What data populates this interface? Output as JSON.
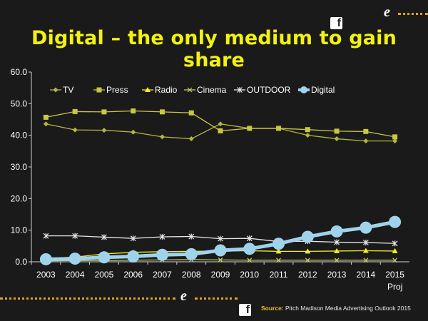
{
  "slide": {
    "title": "Digital – the only medium to gain share",
    "source_label": "Source:",
    "source_text": "Pitch Madison Media Advertising Outlook 2015"
  },
  "icons": {
    "facebook": "f"
  },
  "chart_data": {
    "type": "line",
    "title": "Digital – the only medium to gain share",
    "categories": [
      "2003",
      "2004",
      "2005",
      "2006",
      "2007",
      "2008",
      "2009",
      "2010",
      "2011",
      "2012",
      "2013",
      "2014",
      "2015"
    ],
    "x_sublabels": [
      "",
      "",
      "",
      "",
      "",
      "",
      "",
      "",
      "",
      "",
      "",
      "",
      "Proj"
    ],
    "ylim": [
      0,
      60
    ],
    "yticks": [
      "0.0",
      "10.0",
      "20.0",
      "30.0",
      "40.0",
      "50.0",
      "60.0"
    ],
    "ytick_values": [
      0,
      10,
      20,
      30,
      40,
      50,
      60
    ],
    "legend_position": "top",
    "grid": false,
    "series": [
      {
        "name": "TV",
        "color": "#b5b53f",
        "marker": "diamond",
        "values": [
          43.6,
          41.7,
          41.6,
          41.0,
          39.5,
          38.9,
          43.6,
          42.2,
          42.2,
          40.0,
          38.9,
          38.2,
          38.2
        ]
      },
      {
        "name": "Press",
        "color": "#c8c842",
        "marker": "square",
        "values": [
          45.7,
          47.5,
          47.4,
          47.7,
          47.4,
          47.1,
          41.4,
          42.2,
          42.2,
          41.8,
          41.3,
          41.2,
          39.5
        ]
      },
      {
        "name": "Radio",
        "color": "#f0f020",
        "marker": "triangle",
        "values": [
          1.0,
          1.5,
          2.5,
          3.0,
          3.2,
          3.3,
          3.4,
          3.5,
          3.3,
          3.3,
          3.4,
          3.5,
          3.4
        ]
      },
      {
        "name": "Cinema",
        "color": "#c9c96a",
        "marker": "x",
        "values": [
          0.3,
          0.4,
          0.4,
          0.5,
          0.6,
          0.7,
          0.6,
          0.5,
          0.5,
          0.5,
          0.5,
          0.5,
          0.5
        ]
      },
      {
        "name": "OUTDOOR",
        "color": "#e6e6e6",
        "marker": "star",
        "values": [
          8.2,
          8.2,
          7.8,
          7.4,
          7.9,
          8.0,
          7.3,
          7.4,
          6.4,
          6.5,
          6.2,
          6.1,
          5.8
        ]
      },
      {
        "name": "Digital",
        "color": "#9fd3ec",
        "marker": "circle",
        "values": [
          0.8,
          1.0,
          1.4,
          1.7,
          2.2,
          2.4,
          3.6,
          4.1,
          5.7,
          7.9,
          9.6,
          10.8,
          12.6
        ]
      }
    ]
  }
}
